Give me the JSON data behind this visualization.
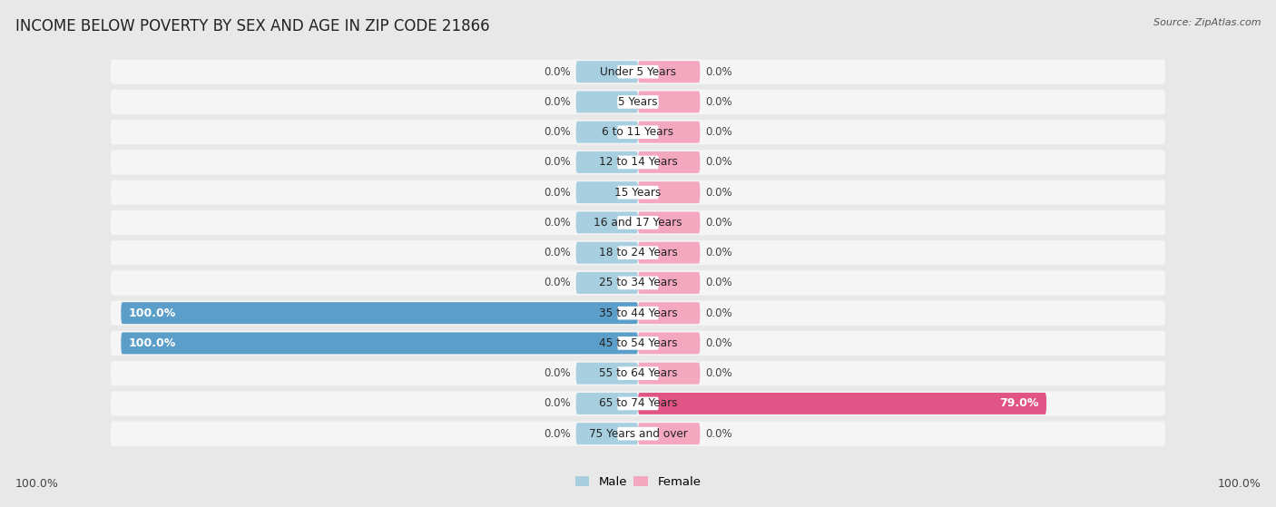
{
  "title": "INCOME BELOW POVERTY BY SEX AND AGE IN ZIP CODE 21866",
  "source": "Source: ZipAtlas.com",
  "categories": [
    "Under 5 Years",
    "5 Years",
    "6 to 11 Years",
    "12 to 14 Years",
    "15 Years",
    "16 and 17 Years",
    "18 to 24 Years",
    "25 to 34 Years",
    "35 to 44 Years",
    "45 to 54 Years",
    "55 to 64 Years",
    "65 to 74 Years",
    "75 Years and over"
  ],
  "male_values": [
    0.0,
    0.0,
    0.0,
    0.0,
    0.0,
    0.0,
    0.0,
    0.0,
    100.0,
    100.0,
    0.0,
    0.0,
    0.0
  ],
  "female_values": [
    0.0,
    0.0,
    0.0,
    0.0,
    0.0,
    0.0,
    0.0,
    0.0,
    0.0,
    0.0,
    0.0,
    79.0,
    0.0
  ],
  "male_stub_color": "#a8cfe0",
  "female_stub_color": "#f4a8c0",
  "male_full_color": "#5b9ec9",
  "female_full_color": "#e05585",
  "background_color": "#e8e8e8",
  "row_color": "#f5f5f5",
  "xlim": 100,
  "stub_size": 12,
  "title_fontsize": 12,
  "label_fontsize": 9,
  "value_fontsize": 8.5,
  "tick_fontsize": 9
}
